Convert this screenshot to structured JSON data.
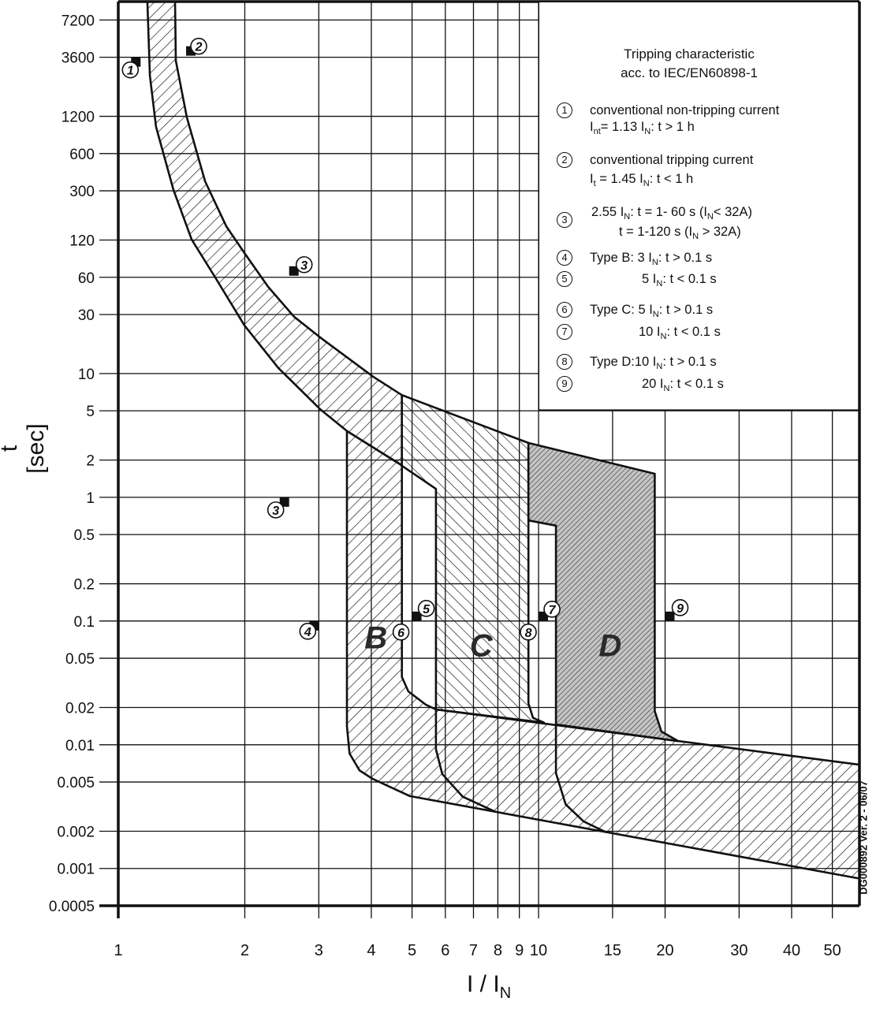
{
  "chart_data": {
    "type": "area",
    "xscale": "log",
    "yscale": "log",
    "xlabel": {
      "main": "I / I",
      "sub": "N"
    },
    "ylabel": "t [sec]",
    "xlim": [
      1,
      58
    ],
    "ylim": [
      0.0005,
      10150
    ],
    "grid": true,
    "xticks": [
      1,
      2,
      3,
      4,
      5,
      6,
      7,
      8,
      9,
      10,
      15,
      20,
      30,
      40,
      50
    ],
    "xtick_labels": [
      "1",
      "2",
      "3",
      "4",
      "5",
      "6",
      "7",
      "8",
      "9",
      "10",
      "15",
      "20",
      "30",
      "40",
      "50"
    ],
    "yticks": [
      7200,
      3600,
      1200,
      600,
      300,
      120,
      60,
      30,
      10,
      5,
      2,
      1,
      0.5,
      0.2,
      0.1,
      0.05,
      0.02,
      0.01,
      0.005,
      0.002,
      0.001,
      0.0005
    ],
    "ytick_labels": [
      "7200",
      "3600",
      "1200",
      "600",
      "300",
      "120",
      "60",
      "30",
      "10",
      "5",
      "2",
      "1",
      "0.5",
      "0.2",
      "0.1",
      "0.05",
      "0.02",
      "0.01",
      "0.005",
      "0.002",
      "0.001",
      "0.0005"
    ],
    "regions": [
      {
        "name": "thermal-band",
        "fill": "hatch-forward",
        "points": [
          [
            1.365,
            10150
          ],
          [
            1.371,
            3380
          ],
          [
            1.456,
            1175
          ],
          [
            1.609,
            358
          ],
          [
            1.807,
            155
          ],
          [
            1.996,
            94.4
          ],
          [
            2.273,
            50.2
          ],
          [
            2.62,
            28.8
          ],
          [
            3.034,
            19.4
          ],
          [
            4.04,
            9.44
          ],
          [
            4.73,
            6.7
          ],
          [
            4.73,
            1.8
          ],
          [
            4.68,
            1.85
          ],
          [
            3.5,
            3.43
          ],
          [
            3.034,
            5.09
          ],
          [
            2.403,
            11.1
          ],
          [
            1.996,
            24.5
          ],
          [
            1.701,
            59.8
          ],
          [
            1.495,
            121
          ],
          [
            1.353,
            305
          ],
          [
            1.23,
            986
          ],
          [
            1.189,
            2557
          ],
          [
            1.173,
            10150
          ]
        ]
      },
      {
        "name": "type-b-and-magnetic-tail",
        "fill": "hatch-forward",
        "points": [
          [
            3.5,
            3.43
          ],
          [
            3.5,
            0.0141
          ],
          [
            3.55,
            0.0085
          ],
          [
            3.75,
            0.0062
          ],
          [
            4.03,
            0.0053
          ],
          [
            4.94,
            0.00385
          ],
          [
            58,
            0.00083
          ],
          [
            58,
            0.0069
          ],
          [
            5.7,
            0.0193
          ],
          [
            5.39,
            0.0211
          ],
          [
            4.9,
            0.027
          ],
          [
            4.73,
            0.0353
          ],
          [
            4.73,
            1.8
          ],
          [
            4.68,
            1.85
          ]
        ]
      },
      {
        "name": "type-c-band",
        "fill": "hatch-back",
        "points": [
          [
            4.73,
            6.7
          ],
          [
            9.46,
            2.75
          ],
          [
            9.46,
            0.0216
          ],
          [
            9.7,
            0.0165
          ],
          [
            10.3,
            0.0151
          ],
          [
            5.7,
            0.0193
          ],
          [
            5.7,
            1.17
          ],
          [
            4.73,
            1.8
          ]
        ]
      },
      {
        "name": "type-d-band",
        "fill": "hatch-dense-gray",
        "points": [
          [
            9.46,
            2.75
          ],
          [
            18.9,
            1.55
          ],
          [
            18.9,
            0.0187
          ],
          [
            19.6,
            0.0128
          ],
          [
            21.5,
            0.0107
          ],
          [
            11,
            0.0146
          ],
          [
            11,
            0.59
          ],
          [
            9.46,
            0.65
          ]
        ]
      }
    ],
    "curves": [
      {
        "name": "type-c-tail-curve",
        "points": [
          [
            5.7,
            0.0193
          ],
          [
            5.7,
            0.0092
          ],
          [
            5.9,
            0.0058
          ],
          [
            6.6,
            0.0038
          ],
          [
            7.9,
            0.00287
          ]
        ]
      },
      {
        "name": "type-d-tail-curve",
        "points": [
          [
            11,
            0.0146
          ],
          [
            11,
            0.0059
          ],
          [
            11.6,
            0.0033
          ],
          [
            12.8,
            0.0024
          ],
          [
            14.4,
            0.00198
          ]
        ]
      }
    ],
    "markers": [
      {
        "n": "1",
        "I": 1.13,
        "t": 3600
      },
      {
        "n": "2",
        "I": 1.45,
        "t": 3600
      },
      {
        "n": "3",
        "I": 2.55,
        "t": 60
      },
      {
        "n": "3",
        "I": 2.55,
        "t": 1
      },
      {
        "n": "4",
        "I": 3,
        "t": 0.1
      },
      {
        "n": "5",
        "I": 5,
        "t": 0.1
      },
      {
        "n": "6",
        "I": 5,
        "t": 0.1
      },
      {
        "n": "7",
        "I": 10,
        "t": 0.1
      },
      {
        "n": "8",
        "I": 10,
        "t": 0.1
      },
      {
        "n": "9",
        "I": 20,
        "t": 0.1
      }
    ],
    "region_labels": [
      {
        "text": "B",
        "I": 4.1,
        "t": 0.06
      },
      {
        "text": "C",
        "I": 7.3,
        "t": 0.052
      },
      {
        "text": "D",
        "I": 14.8,
        "t": 0.052
      }
    ],
    "legend": {
      "title": [
        "Tripping characteristic",
        "acc. to IEC/EN60898-1"
      ],
      "items": [
        {
          "n": "1",
          "lines": [
            [
              {
                "t": "conventional non-tripping current"
              }
            ],
            [
              {
                "t": "I"
              },
              {
                "t": "nt",
                "sub": true
              },
              {
                "t": "= 1.13 I"
              },
              {
                "t": "N",
                "sub": true
              },
              {
                "t": ": t > 1 h"
              }
            ]
          ]
        },
        {
          "n": "2",
          "lines": [
            [
              {
                "t": "conventional tripping current"
              }
            ],
            [
              {
                "t": "I"
              },
              {
                "t": "t",
                "sub": true
              },
              {
                "t": " = 1.45 I"
              },
              {
                "t": "N",
                "sub": true
              },
              {
                "t": ": t < 1 h"
              }
            ]
          ]
        },
        {
          "n": "3",
          "lines": [
            [
              {
                "t": "2.55 I"
              },
              {
                "t": "N",
                "sub": true
              },
              {
                "t": ": t = 1- 60 s (I"
              },
              {
                "t": "N",
                "sub": true
              },
              {
                "t": "< 32A)"
              }
            ],
            [
              {
                "t": "t = 1-120 s (I"
              },
              {
                "t": "N",
                "sub": true
              },
              {
                "t": " > 32A)"
              }
            ]
          ]
        },
        {
          "n": "4",
          "lines": [
            [
              {
                "t": "Type B: 3 I"
              },
              {
                "t": "N",
                "sub": true
              },
              {
                "t": ": t > 0.1 s"
              }
            ]
          ]
        },
        {
          "n": "5",
          "lines": [
            [
              {
                "t": "5 I"
              },
              {
                "t": "N",
                "sub": true
              },
              {
                "t": ": t < 0.1 s"
              }
            ]
          ]
        },
        {
          "n": "6",
          "lines": [
            [
              {
                "t": "Type C: 5 I"
              },
              {
                "t": "N",
                "sub": true
              },
              {
                "t": ": t > 0.1 s"
              }
            ]
          ]
        },
        {
          "n": "7",
          "lines": [
            [
              {
                "t": "10 I"
              },
              {
                "t": "N",
                "sub": true
              },
              {
                "t": ": t < 0.1 s"
              }
            ]
          ]
        },
        {
          "n": "8",
          "lines": [
            [
              {
                "t": "Type D:10 I"
              },
              {
                "t": "N",
                "sub": true
              },
              {
                "t": ": t > 0.1 s"
              }
            ]
          ]
        },
        {
          "n": "9",
          "lines": [
            [
              {
                "t": "20 I"
              },
              {
                "t": "N",
                "sub": true
              },
              {
                "t": ": t < 0.1 s"
              }
            ]
          ]
        }
      ]
    },
    "footnote": "DG000892 Ver. 2 - 06/07",
    "colors": {
      "line": "#111111",
      "d_fill": "#b8b8b8",
      "background": "#ffffff"
    }
  }
}
